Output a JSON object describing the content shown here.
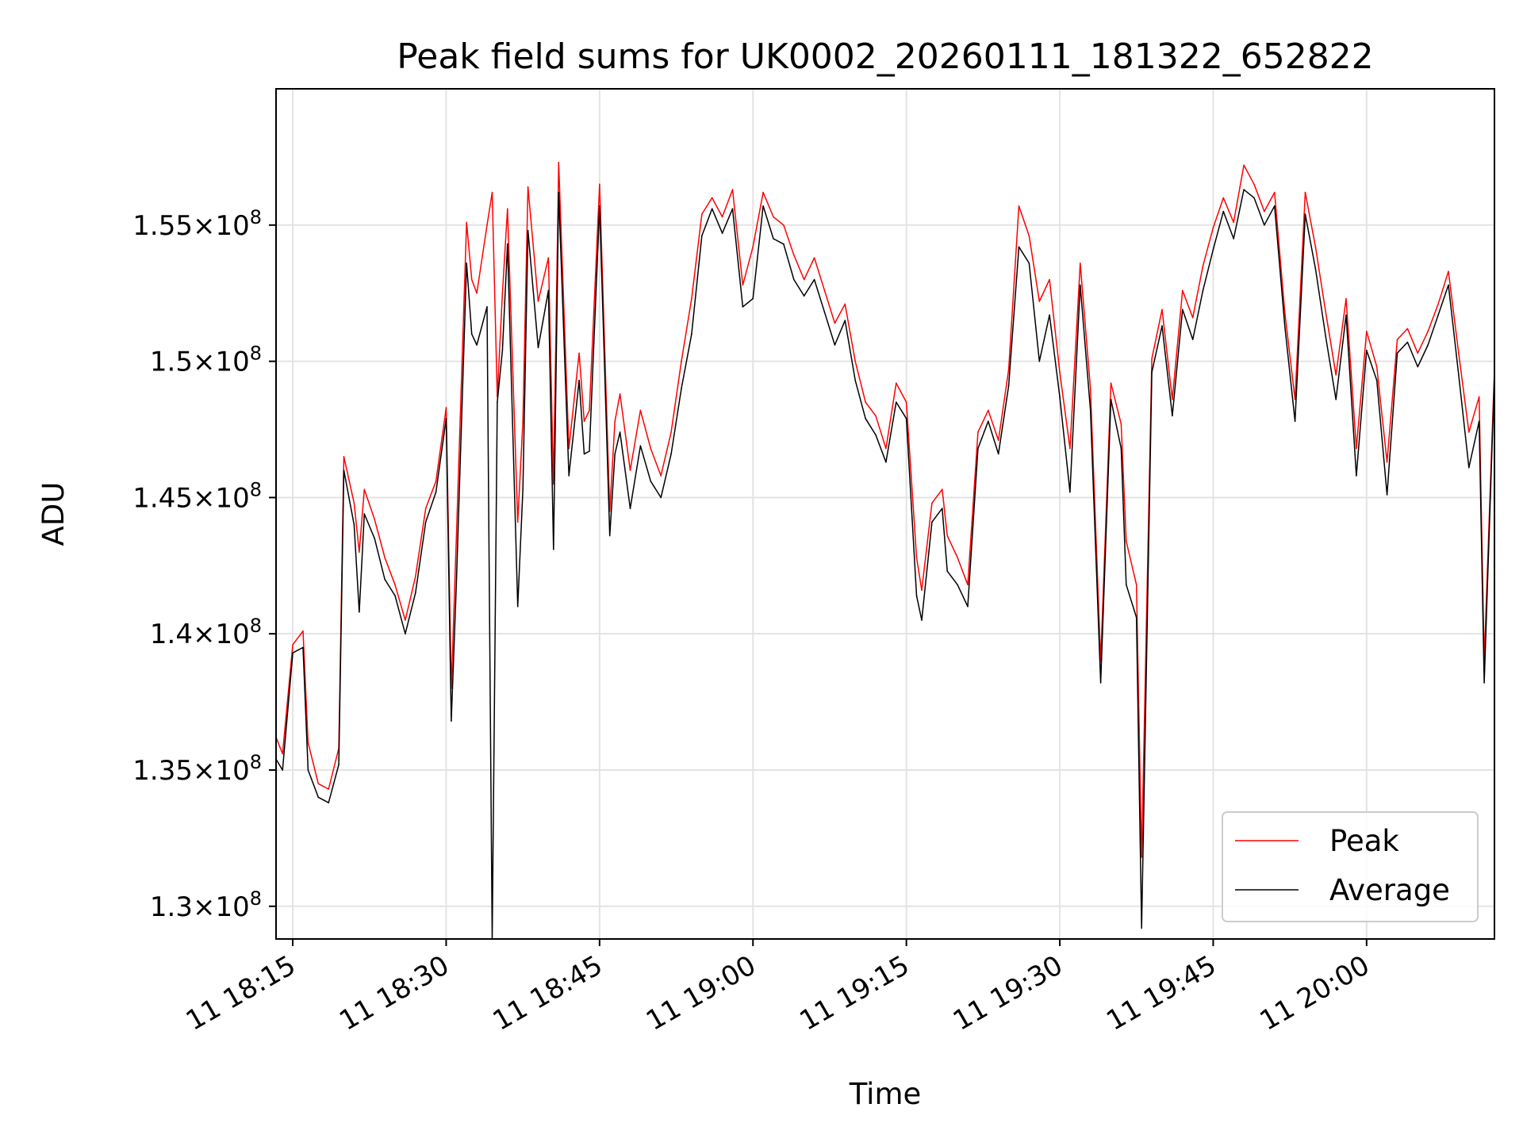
{
  "chart_data": {
    "type": "line",
    "title": "Peak field sums for UK0002_20260111_181322_652822",
    "xlabel": "Time",
    "ylabel": "ADU",
    "xlim": [
      "11 18:13:22",
      "11 20:12:30"
    ],
    "ylim": [
      128800000,
      160000000
    ],
    "grid": true,
    "legend_position": "lower-right",
    "x_ticks": [
      "11 18:15",
      "11 18:30",
      "11 18:45",
      "11 19:00",
      "11 19:15",
      "11 19:30",
      "11 19:45",
      "11 20:00"
    ],
    "y_ticks": [
      {
        "value": 130000000,
        "label_mantissa": "1.3",
        "label_exponent": "8"
      },
      {
        "value": 135000000,
        "label_mantissa": "1.35",
        "label_exponent": "8"
      },
      {
        "value": 140000000,
        "label_mantissa": "1.4",
        "label_exponent": "8"
      },
      {
        "value": 145000000,
        "label_mantissa": "1.45",
        "label_exponent": "8"
      },
      {
        "value": 150000000,
        "label_mantissa": "1.5",
        "label_exponent": "8"
      },
      {
        "value": 155000000,
        "label_mantissa": "1.55",
        "label_exponent": "8"
      }
    ],
    "x": [
      "11 18:13:22",
      "11 18:14:00",
      "11 18:15:00",
      "11 18:16:00",
      "11 18:16:30",
      "11 18:17:30",
      "11 18:18:30",
      "11 18:19:30",
      "11 18:20:00",
      "11 18:21:00",
      "11 18:21:30",
      "11 18:22:00",
      "11 18:23:00",
      "11 18:24:00",
      "11 18:25:00",
      "11 18:26:00",
      "11 18:27:00",
      "11 18:28:00",
      "11 18:29:00",
      "11 18:30:00",
      "11 18:30:30",
      "11 18:31:00",
      "11 18:32:00",
      "11 18:32:30",
      "11 18:33:00",
      "11 18:34:00",
      "11 18:34:30",
      "11 18:35:00",
      "11 18:35:30",
      "11 18:36:00",
      "11 18:37:00",
      "11 18:37:30",
      "11 18:38:00",
      "11 18:39:00",
      "11 18:40:00",
      "11 18:40:30",
      "11 18:41:00",
      "11 18:42:00",
      "11 18:43:00",
      "11 18:43:30",
      "11 18:44:00",
      "11 18:45:00",
      "11 18:46:00",
      "11 18:46:30",
      "11 18:47:00",
      "11 18:48:00",
      "11 18:49:00",
      "11 18:50:00",
      "11 18:51:00",
      "11 18:52:00",
      "11 18:53:00",
      "11 18:54:00",
      "11 18:55:00",
      "11 18:56:00",
      "11 18:57:00",
      "11 18:58:00",
      "11 18:59:00",
      "11 19:00:00",
      "11 19:01:00",
      "11 19:02:00",
      "11 19:03:00",
      "11 19:04:00",
      "11 19:05:00",
      "11 19:06:00",
      "11 19:07:00",
      "11 19:08:00",
      "11 19:09:00",
      "11 19:10:00",
      "11 19:11:00",
      "11 19:12:00",
      "11 19:13:00",
      "11 19:14:00",
      "11 19:15:00",
      "11 19:16:00",
      "11 19:16:30",
      "11 19:17:30",
      "11 19:18:30",
      "11 19:19:00",
      "11 19:20:00",
      "11 19:21:00",
      "11 19:22:00",
      "11 19:23:00",
      "11 19:24:00",
      "11 19:25:00",
      "11 19:26:00",
      "11 19:27:00",
      "11 19:28:00",
      "11 19:29:00",
      "11 19:30:00",
      "11 19:31:00",
      "11 19:32:00",
      "11 19:33:00",
      "11 19:34:00",
      "11 19:35:00",
      "11 19:36:00",
      "11 19:36:30",
      "11 19:37:30",
      "11 19:38:00",
      "11 19:39:00",
      "11 19:40:00",
      "11 19:41:00",
      "11 19:42:00",
      "11 19:43:00",
      "11 19:44:00",
      "11 19:45:00",
      "11 19:46:00",
      "11 19:47:00",
      "11 19:48:00",
      "11 19:49:00",
      "11 19:50:00",
      "11 19:51:00",
      "11 19:52:00",
      "11 19:53:00",
      "11 19:54:00",
      "11 19:55:00",
      "11 19:56:00",
      "11 19:57:00",
      "11 19:58:00",
      "11 19:59:00",
      "11 20:00:00",
      "11 20:01:00",
      "11 20:02:00",
      "11 20:03:00",
      "11 20:04:00",
      "11 20:05:00",
      "11 20:06:00",
      "11 20:07:00",
      "11 20:08:00",
      "11 20:09:00",
      "11 20:10:00",
      "11 20:11:00",
      "11 20:11:30",
      "11 20:12:30"
    ],
    "series": [
      {
        "name": "Peak",
        "color": "#ff0000",
        "values": [
          136200000,
          135600000,
          139600000,
          140100000,
          136000000,
          134500000,
          134300000,
          135800000,
          146500000,
          144800000,
          143000000,
          145300000,
          144200000,
          142800000,
          141800000,
          140500000,
          142100000,
          144600000,
          145600000,
          148300000,
          138000000,
          143500000,
          155100000,
          153000000,
          152500000,
          155000000,
          156200000,
          148700000,
          152500000,
          155600000,
          144100000,
          147800000,
          156400000,
          152200000,
          153800000,
          145500000,
          157300000,
          146800000,
          150300000,
          147800000,
          148200000,
          156500000,
          144500000,
          147800000,
          148800000,
          146000000,
          148200000,
          146800000,
          145800000,
          147400000,
          150000000,
          152300000,
          155400000,
          156000000,
          155300000,
          156300000,
          152800000,
          154200000,
          156200000,
          155300000,
          155000000,
          153900000,
          153000000,
          153800000,
          152600000,
          151400000,
          152100000,
          150000000,
          148500000,
          148000000,
          146800000,
          149200000,
          148500000,
          142800000,
          141600000,
          144800000,
          145300000,
          143600000,
          142800000,
          141800000,
          147400000,
          148200000,
          147100000,
          149700000,
          155700000,
          154600000,
          152200000,
          153000000,
          149600000,
          146800000,
          153600000,
          149000000,
          139000000,
          149200000,
          147700000,
          143400000,
          141800000,
          131800000,
          150100000,
          151900000,
          148600000,
          152600000,
          151600000,
          153500000,
          154900000,
          156000000,
          155100000,
          157200000,
          156500000,
          155500000,
          156200000,
          151800000,
          148600000,
          156200000,
          154200000,
          151800000,
          149500000,
          152300000,
          146800000,
          151100000,
          149800000,
          146300000,
          150800000,
          151200000,
          150300000,
          151100000,
          152100000,
          153300000,
          150300000,
          147400000,
          148700000,
          139000000,
          149700000
        ]
      },
      {
        "name": "Average",
        "color": "#000000",
        "values": [
          135400000,
          135000000,
          139300000,
          139500000,
          135000000,
          134000000,
          133800000,
          135200000,
          146000000,
          144000000,
          140800000,
          144400000,
          143500000,
          142000000,
          141400000,
          140000000,
          141500000,
          144100000,
          145200000,
          147900000,
          136800000,
          141800000,
          153600000,
          151000000,
          150600000,
          152000000,
          128800000,
          148500000,
          150400000,
          154300000,
          141000000,
          145300000,
          154800000,
          150500000,
          152600000,
          143100000,
          156200000,
          145800000,
          149300000,
          146600000,
          146700000,
          155700000,
          143600000,
          146600000,
          147400000,
          144600000,
          146900000,
          145600000,
          145000000,
          146600000,
          149000000,
          151000000,
          154600000,
          155600000,
          154700000,
          155600000,
          152000000,
          152300000,
          155700000,
          154500000,
          154300000,
          153000000,
          152400000,
          153000000,
          151800000,
          150600000,
          151500000,
          149300000,
          147900000,
          147300000,
          146300000,
          148500000,
          147900000,
          141400000,
          140500000,
          144100000,
          144600000,
          142300000,
          141800000,
          141000000,
          146800000,
          147800000,
          146600000,
          149100000,
          154200000,
          153600000,
          150000000,
          151700000,
          148700000,
          145200000,
          152800000,
          148200000,
          138200000,
          148600000,
          146800000,
          141800000,
          140600000,
          129200000,
          149600000,
          151300000,
          148000000,
          151900000,
          150800000,
          152600000,
          154100000,
          155500000,
          154500000,
          156300000,
          156000000,
          155000000,
          155700000,
          151300000,
          147800000,
          155400000,
          153400000,
          150900000,
          148600000,
          151700000,
          145800000,
          150400000,
          149300000,
          145100000,
          150300000,
          150700000,
          149800000,
          150600000,
          151700000,
          152800000,
          149500000,
          146100000,
          147800000,
          138200000,
          149500000
        ]
      }
    ]
  }
}
